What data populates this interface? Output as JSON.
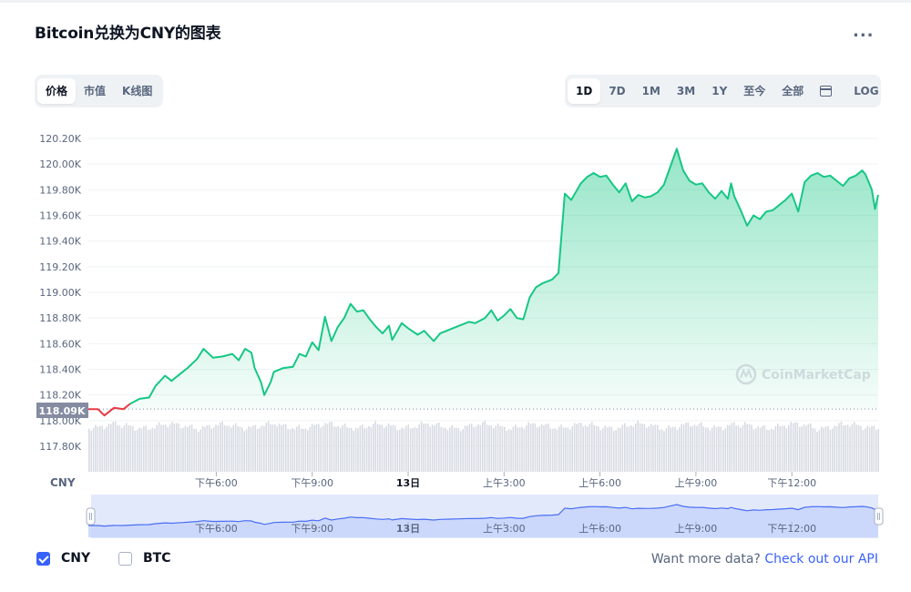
{
  "header": {
    "title": "Bitcoin兑换为CNY的图表",
    "more": "..."
  },
  "view_tabs": [
    {
      "label": "价格",
      "active": true
    },
    {
      "label": "市值",
      "active": false
    },
    {
      "label": "K线图",
      "active": false
    }
  ],
  "range_tabs": [
    {
      "label": "1D",
      "active": true
    },
    {
      "label": "7D",
      "active": false
    },
    {
      "label": "1M",
      "active": false
    },
    {
      "label": "3M",
      "active": false
    },
    {
      "label": "1Y",
      "active": false
    },
    {
      "label": "至今",
      "active": false
    },
    {
      "label": "全部",
      "active": false
    }
  ],
  "calendar_icon": "calendar-icon",
  "log_label": "LOG",
  "axis_currency": "CNY",
  "current_price_label": "118.09K",
  "watermark": "CoinMarketCap",
  "colors": {
    "up": "#16c784",
    "down": "#ea3943",
    "accent": "#3861fb",
    "navigator_line": "#4a6ef5"
  },
  "chart_data": {
    "type": "area",
    "y_unit": "CNY",
    "ylim": [
      117.65,
      120.3
    ],
    "y_ticks": [
      120.2,
      120.0,
      119.8,
      119.6,
      119.4,
      119.2,
      119.0,
      118.8,
      118.6,
      118.4,
      118.2,
      118.0,
      117.8
    ],
    "y_tick_labels": [
      "120.20K",
      "120.00K",
      "119.80K",
      "119.60K",
      "119.40K",
      "119.20K",
      "119.00K",
      "118.80K",
      "118.60K",
      "118.40K",
      "118.20K",
      "118.00K",
      "117.80K"
    ],
    "baseline": 118.09,
    "x_range_hours": [
      14.0,
      38.7
    ],
    "x_ticks": [
      {
        "t": 18,
        "label": "下午6:00",
        "bold": false
      },
      {
        "t": 21,
        "label": "下午9:00",
        "bold": false
      },
      {
        "t": 24,
        "label": "13日",
        "bold": true
      },
      {
        "t": 27,
        "label": "上午3:00",
        "bold": false
      },
      {
        "t": 30,
        "label": "上午6:00",
        "bold": false
      },
      {
        "t": 33,
        "label": "上午9:00",
        "bold": false
      },
      {
        "t": 36,
        "label": "下午12:00",
        "bold": false
      }
    ],
    "navigator_ticks": [
      "下午6:00",
      "下午9:00",
      "13日",
      "上午3:00",
      "上午6:00",
      "上午9:00",
      "下午12:00"
    ],
    "series": [
      {
        "points": [
          [
            14.0,
            118.09
          ],
          [
            14.3,
            118.09
          ],
          [
            14.5,
            118.04
          ],
          [
            14.8,
            118.1
          ],
          [
            15.1,
            118.09
          ],
          [
            15.3,
            118.13
          ],
          [
            15.6,
            118.17
          ],
          [
            15.9,
            118.18
          ],
          [
            16.1,
            118.27
          ],
          [
            16.4,
            118.35
          ],
          [
            16.6,
            118.31
          ],
          [
            16.9,
            118.37
          ],
          [
            17.1,
            118.41
          ],
          [
            17.4,
            118.48
          ],
          [
            17.6,
            118.56
          ],
          [
            17.9,
            118.49
          ],
          [
            18.2,
            118.5
          ],
          [
            18.5,
            118.52
          ],
          [
            18.7,
            118.47
          ],
          [
            18.9,
            118.56
          ],
          [
            19.1,
            118.53
          ],
          [
            19.2,
            118.41
          ],
          [
            19.4,
            118.3
          ],
          [
            19.5,
            118.2
          ],
          [
            19.7,
            118.3
          ],
          [
            19.8,
            118.38
          ],
          [
            20.1,
            118.41
          ],
          [
            20.4,
            118.42
          ],
          [
            20.6,
            118.52
          ],
          [
            20.8,
            118.5
          ],
          [
            21.0,
            118.61
          ],
          [
            21.2,
            118.55
          ],
          [
            21.4,
            118.81
          ],
          [
            21.6,
            118.62
          ],
          [
            21.8,
            118.73
          ],
          [
            22.0,
            118.8
          ],
          [
            22.2,
            118.91
          ],
          [
            22.4,
            118.85
          ],
          [
            22.6,
            118.86
          ],
          [
            22.8,
            118.79
          ],
          [
            23.0,
            118.73
          ],
          [
            23.2,
            118.68
          ],
          [
            23.4,
            118.74
          ],
          [
            23.5,
            118.63
          ],
          [
            23.8,
            118.76
          ],
          [
            24.0,
            118.72
          ],
          [
            24.3,
            118.67
          ],
          [
            24.5,
            118.7
          ],
          [
            24.8,
            118.62
          ],
          [
            25.0,
            118.68
          ],
          [
            25.3,
            118.71
          ],
          [
            25.6,
            118.74
          ],
          [
            25.9,
            118.77
          ],
          [
            26.1,
            118.76
          ],
          [
            26.4,
            118.8
          ],
          [
            26.6,
            118.86
          ],
          [
            26.8,
            118.78
          ],
          [
            27.0,
            118.82
          ],
          [
            27.2,
            118.87
          ],
          [
            27.4,
            118.8
          ],
          [
            27.6,
            118.79
          ],
          [
            27.8,
            118.96
          ],
          [
            28.0,
            119.04
          ],
          [
            28.2,
            119.07
          ],
          [
            28.5,
            119.1
          ],
          [
            28.7,
            119.15
          ],
          [
            28.9,
            119.77
          ],
          [
            29.1,
            119.72
          ],
          [
            29.4,
            119.85
          ],
          [
            29.6,
            119.9
          ],
          [
            29.8,
            119.93
          ],
          [
            30.0,
            119.9
          ],
          [
            30.2,
            119.91
          ],
          [
            30.4,
            119.84
          ],
          [
            30.6,
            119.78
          ],
          [
            30.8,
            119.85
          ],
          [
            31.0,
            119.71
          ],
          [
            31.2,
            119.76
          ],
          [
            31.4,
            119.74
          ],
          [
            31.6,
            119.75
          ],
          [
            31.8,
            119.78
          ],
          [
            32.0,
            119.84
          ],
          [
            32.2,
            119.98
          ],
          [
            32.4,
            120.12
          ],
          [
            32.6,
            119.95
          ],
          [
            32.8,
            119.87
          ],
          [
            33.0,
            119.84
          ],
          [
            33.2,
            119.85
          ],
          [
            33.4,
            119.78
          ],
          [
            33.6,
            119.73
          ],
          [
            33.8,
            119.79
          ],
          [
            34.0,
            119.73
          ],
          [
            34.1,
            119.85
          ],
          [
            34.2,
            119.75
          ],
          [
            34.4,
            119.64
          ],
          [
            34.6,
            119.52
          ],
          [
            34.8,
            119.6
          ],
          [
            35.0,
            119.57
          ],
          [
            35.2,
            119.63
          ],
          [
            35.4,
            119.64
          ],
          [
            35.6,
            119.68
          ],
          [
            35.8,
            119.72
          ],
          [
            36.0,
            119.77
          ],
          [
            36.2,
            119.63
          ],
          [
            36.4,
            119.86
          ],
          [
            36.6,
            119.91
          ],
          [
            36.8,
            119.93
          ],
          [
            37.0,
            119.9
          ],
          [
            37.2,
            119.91
          ],
          [
            37.4,
            119.87
          ],
          [
            37.6,
            119.83
          ],
          [
            37.8,
            119.89
          ],
          [
            38.0,
            119.91
          ],
          [
            38.2,
            119.95
          ],
          [
            38.3,
            119.92
          ],
          [
            38.5,
            119.8
          ],
          [
            38.6,
            119.65
          ],
          [
            38.7,
            119.76
          ]
        ]
      }
    ]
  },
  "legend": [
    {
      "label": "CNY",
      "checked": true
    },
    {
      "label": "BTC",
      "checked": false
    }
  ],
  "api": {
    "prefix": "Want more data?",
    "link": "Check out our API"
  }
}
